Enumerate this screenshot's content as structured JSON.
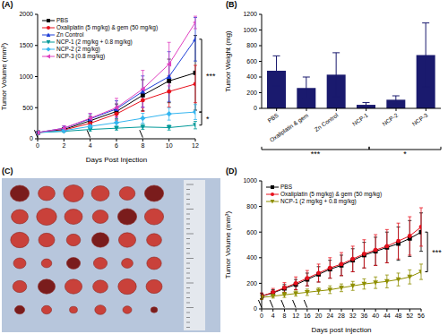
{
  "chart_data": [
    {
      "type": "line",
      "title": "(A)",
      "x_label": "Days Post Injection",
      "y_label": "Tumor Volume (mm³)",
      "x": [
        0,
        2,
        4,
        6,
        8,
        10,
        12
      ],
      "xlim": [
        0,
        12
      ],
      "xticks": [
        0,
        2,
        4,
        6,
        8,
        10,
        12
      ],
      "ylim": [
        0,
        2000
      ],
      "yticks": [
        0,
        500,
        1000,
        1500,
        2000
      ],
      "legend": "upper left",
      "injection_days": [
        0,
        4,
        8
      ],
      "series": [
        {
          "name": "PBS",
          "color": "#000000",
          "marker": "square",
          "values": [
            100,
            150,
            290,
            440,
            700,
            930,
            1060
          ],
          "errors": [
            15,
            30,
            70,
            120,
            250,
            350,
            600
          ]
        },
        {
          "name": "Oxaliplatin (5 mg/kg) & gem (50 mg/kg)",
          "color": "#e8101c",
          "marker": "circle",
          "values": [
            100,
            140,
            250,
            400,
            620,
            760,
            880
          ],
          "errors": [
            15,
            25,
            60,
            100,
            180,
            250,
            300
          ]
        },
        {
          "name": "Zn Control",
          "color": "#1f3fd6",
          "marker": "triangle-up",
          "values": [
            100,
            170,
            320,
            480,
            760,
            1000,
            1600
          ],
          "errors": [
            15,
            35,
            80,
            130,
            250,
            400,
            350
          ]
        },
        {
          "name": "NCP-1 (2 mg/kg + 0.8 mg/kg)",
          "color": "#009999",
          "marker": "triangle-down",
          "values": [
            100,
            120,
            150,
            170,
            190,
            180,
            220
          ],
          "errors": [
            10,
            15,
            25,
            30,
            40,
            40,
            60
          ]
        },
        {
          "name": "NCP-2 (2 mg/kg)",
          "color": "#33b5f0",
          "marker": "diamond",
          "values": [
            100,
            130,
            200,
            260,
            330,
            400,
            430
          ],
          "errors": [
            10,
            20,
            40,
            60,
            80,
            100,
            120
          ]
        },
        {
          "name": "NCP-3 (0.8 mg/kg)",
          "color": "#e040c0",
          "marker": "triangle-left",
          "values": [
            100,
            170,
            330,
            500,
            800,
            1200,
            1870
          ],
          "errors": [
            15,
            40,
            80,
            150,
            300,
            350,
            100
          ]
        }
      ],
      "annotations": [
        {
          "text": "***",
          "from": "Zn Control",
          "to": "NCP-2 (2 mg/kg)"
        },
        {
          "text": "*",
          "from": "NCP-2 (2 mg/kg)",
          "to": "NCP-1 (2 mg/kg + 0.8 mg/kg)"
        }
      ]
    },
    {
      "type": "bar",
      "title": "(B)",
      "y_label": "Tumor Weight (mg)",
      "categories": [
        "PBS",
        "Oxaliplatin & gem",
        "Zn Control",
        "NCP-1",
        "NCP-2",
        "NCP-3"
      ],
      "values": [
        480,
        260,
        430,
        45,
        110,
        680
      ],
      "errors": [
        190,
        140,
        280,
        30,
        50,
        410
      ],
      "color": "#1a1a6e",
      "ylim": [
        0,
        1200
      ],
      "yticks": [
        0,
        200,
        400,
        600,
        800,
        1000,
        1200
      ],
      "annotations": [
        {
          "text": "***",
          "from": "PBS",
          "to": "NCP-1"
        },
        {
          "text": "*",
          "from": "NCP-1",
          "to": "NCP-3"
        }
      ]
    },
    {
      "type": "image",
      "title": "(C)"
    },
    {
      "type": "line",
      "title": "(D)",
      "x_label": "Days post injection",
      "y_label": "Tumor Volume (mm³)",
      "x": [
        0,
        4,
        8,
        12,
        16,
        20,
        24,
        28,
        32,
        36,
        40,
        44,
        48,
        52,
        56
      ],
      "xlim": [
        0,
        56
      ],
      "xticks": [
        0,
        4,
        8,
        12,
        16,
        20,
        24,
        28,
        32,
        36,
        40,
        44,
        48,
        52,
        56
      ],
      "ylim": [
        0,
        1000
      ],
      "yticks": [
        0,
        200,
        400,
        600,
        800,
        1000
      ],
      "legend": "upper left",
      "injection_days": [
        0,
        4,
        8,
        12,
        16
      ],
      "series": [
        {
          "name": "PBS",
          "color": "#000000",
          "marker": "square",
          "values": [
            100,
            125,
            160,
            190,
            230,
            270,
            310,
            340,
            380,
            420,
            450,
            480,
            510,
            550,
            600
          ],
          "errors": [
            20,
            25,
            30,
            40,
            50,
            60,
            70,
            80,
            90,
            100,
            110,
            120,
            130,
            140,
            150
          ]
        },
        {
          "name": "Oxaliplatin (5 mg/kg) & gem (50 mg/kg)",
          "color": "#e8101c",
          "marker": "circle",
          "values": [
            100,
            130,
            165,
            200,
            240,
            280,
            320,
            350,
            390,
            430,
            460,
            490,
            530,
            570,
            640
          ],
          "errors": [
            25,
            30,
            40,
            50,
            60,
            70,
            80,
            90,
            100,
            110,
            120,
            130,
            140,
            150,
            150
          ]
        },
        {
          "name": "NCP-1 (2 mg/kg + 0.8 mg/kg)",
          "color": "#8f8f00",
          "marker": "triangle-down",
          "values": [
            90,
            100,
            110,
            120,
            130,
            140,
            150,
            165,
            180,
            195,
            205,
            215,
            230,
            250,
            290
          ],
          "errors": [
            15,
            15,
            20,
            20,
            25,
            25,
            30,
            30,
            35,
            40,
            45,
            50,
            50,
            55,
            60
          ]
        }
      ],
      "annotations": [
        {
          "text": "***",
          "from": "PBS",
          "to": "NCP-1 (2 mg/kg + 0.8 mg/kg)"
        }
      ]
    }
  ]
}
